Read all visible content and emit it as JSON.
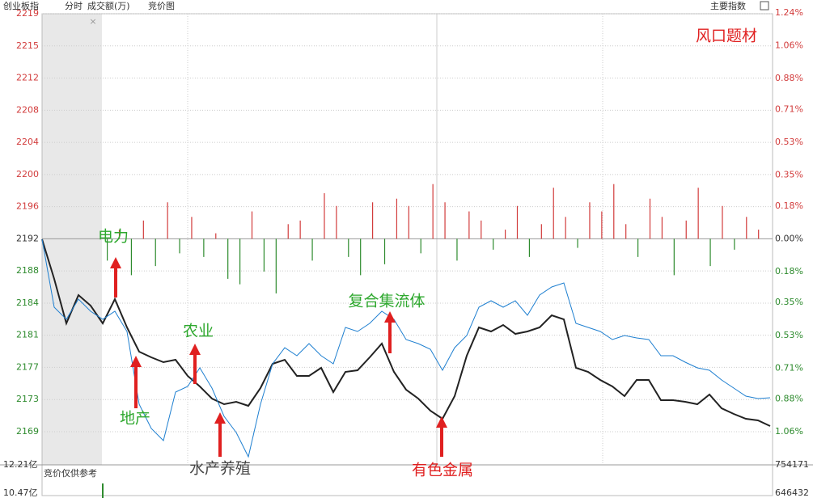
{
  "header": {
    "title": "创业板指",
    "tabs": [
      "分时",
      "成交额(万)",
      "竞价图"
    ],
    "right": "主要指数"
  },
  "chart_data": {
    "type": "line",
    "annotation": "风口题材",
    "ylim": [
      2165,
      2219.28
    ],
    "yticks": [
      {
        "value": 2219.28,
        "label": "2219"
      },
      {
        "value": 2215.41,
        "label": "2215"
      },
      {
        "value": 2211.54,
        "label": "2212"
      },
      {
        "value": 2207.67,
        "label": "2208"
      },
      {
        "value": 2203.8,
        "label": "2204"
      },
      {
        "value": 2199.94,
        "label": "2200"
      },
      {
        "value": 2196.07,
        "label": "2196"
      },
      {
        "value": 2192.2,
        "label": "2192"
      },
      {
        "value": 2188.33,
        "label": "2188"
      },
      {
        "value": 2184.46,
        "label": "2184"
      },
      {
        "value": 2180.6,
        "label": "2181"
      },
      {
        "value": 2176.73,
        "label": "2177"
      },
      {
        "value": 2172.86,
        "label": "2173"
      },
      {
        "value": 2168.99,
        "label": "2169"
      }
    ],
    "y2lim": [
      -1.241,
      1.235
    ],
    "y2ticks": [
      {
        "value": 1.24,
        "label": "1.24%"
      },
      {
        "value": 1.06,
        "label": "1.06%"
      },
      {
        "value": 0.88,
        "label": "0.88%"
      },
      {
        "value": 0.71,
        "label": "0.71%"
      },
      {
        "value": 0.53,
        "label": "0.53%"
      },
      {
        "value": 0.35,
        "label": "0.35%"
      },
      {
        "value": 0.18,
        "label": "0.18%"
      },
      {
        "value": 0,
        "label": "0.00%"
      },
      {
        "value": -0.18,
        "label": "0.18%"
      },
      {
        "value": -0.35,
        "label": "0.35%"
      },
      {
        "value": -0.53,
        "label": "0.53%"
      },
      {
        "value": -0.71,
        "label": "0.71%"
      },
      {
        "value": -0.88,
        "label": "0.88%"
      },
      {
        "value": -1.06,
        "label": "1.06%"
      }
    ],
    "grid": true,
    "colors": {
      "up": "#d23c3c",
      "down": "#2e8b2e",
      "flat": "#333333"
    },
    "series": [
      {
        "type": "line",
        "color": "#222222",
        "values": [
          2192.14,
          2187.37,
          2182.02,
          2185.43,
          2184.16,
          2182.02,
          2184.94,
          2181.54,
          2178.62,
          2177.94,
          2177.35,
          2177.65,
          2175.7,
          2174.44,
          2172.98,
          2172.3,
          2172.59,
          2172.1,
          2174.24,
          2177.16,
          2177.65,
          2175.7,
          2175.7,
          2176.67,
          2173.75,
          2176.19,
          2176.38,
          2177.94,
          2179.59,
          2176.19,
          2174.05,
          2172.98,
          2171.52,
          2170.54,
          2173.27,
          2178.13,
          2181.54,
          2181.05,
          2181.83,
          2180.76,
          2181.05,
          2181.54,
          2183.0,
          2182.51,
          2176.67,
          2176.19,
          2175.21,
          2174.44,
          2173.27,
          2175.21,
          2175.21,
          2172.78,
          2172.78,
          2172.59,
          2172.3,
          2173.46,
          2171.81,
          2171.13,
          2170.54,
          2170.35,
          2169.67
        ]
      },
      {
        "type": "line",
        "color": "#1e7fd0",
        "values": [
          2192.14,
          2183.97,
          2182.51,
          2184.94,
          2183.48,
          2182.51,
          2183.48,
          2181.05,
          2172.3,
          2169.38,
          2167.92,
          2173.75,
          2174.44,
          2176.67,
          2174.24,
          2170.84,
          2168.89,
          2165.97,
          2172.3,
          2177.16,
          2179.1,
          2178.13,
          2179.59,
          2178.13,
          2177.16,
          2181.54,
          2181.05,
          2182.02,
          2183.48,
          2182.51,
          2180.08,
          2179.59,
          2178.91,
          2176.38,
          2179.1,
          2180.56,
          2183.97,
          2184.75,
          2183.97,
          2184.75,
          2183.0,
          2185.43,
          2186.4,
          2186.89,
          2182.02,
          2181.54,
          2181.05,
          2180.08,
          2180.56,
          2180.27,
          2180.08,
          2178.13,
          2178.13,
          2177.35,
          2176.67,
          2176.38,
          2175.21,
          2174.24,
          2173.27,
          2172.98,
          2173.07
        ]
      },
      {
        "type": "bar",
        "axis": "y2",
        "values": [
          -0.12,
          0.05,
          -0.2,
          0.1,
          -0.15,
          0.2,
          -0.08,
          0.12,
          -0.1,
          0.03,
          -0.22,
          -0.25,
          0.15,
          -0.18,
          -0.3,
          0.08,
          0.1,
          -0.12,
          0.25,
          0.18,
          -0.1,
          -0.2,
          0.2,
          -0.14,
          0.22,
          0.18,
          -0.08,
          0.3,
          0.2,
          -0.12,
          0.15,
          0.1,
          -0.06,
          0.05,
          0.18,
          -0.1,
          0.08,
          0.28,
          0.12,
          -0.05,
          0.2,
          0.15,
          0.3,
          0.08,
          -0.1,
          0.22,
          0.12,
          -0.2,
          0.1,
          0.28,
          -0.15,
          0.18,
          -0.06,
          0.12,
          0.05
        ]
      }
    ],
    "annotations": [
      {
        "text": "电力",
        "color": "#2ea82e"
      },
      {
        "text": "地产",
        "color": "#2ea82e"
      },
      {
        "text": "农业",
        "color": "#2ea82e"
      },
      {
        "text": "水产养殖",
        "color": "#444444"
      },
      {
        "text": "复合集流体",
        "color": "#2ea82e"
      },
      {
        "text": "有色金属",
        "color": "#e02020"
      }
    ]
  },
  "footer": {
    "left_labels": [
      "12.21亿",
      "10.47亿"
    ],
    "right_labels": [
      "754171",
      "646432"
    ],
    "note": "竞价仅供参考"
  }
}
